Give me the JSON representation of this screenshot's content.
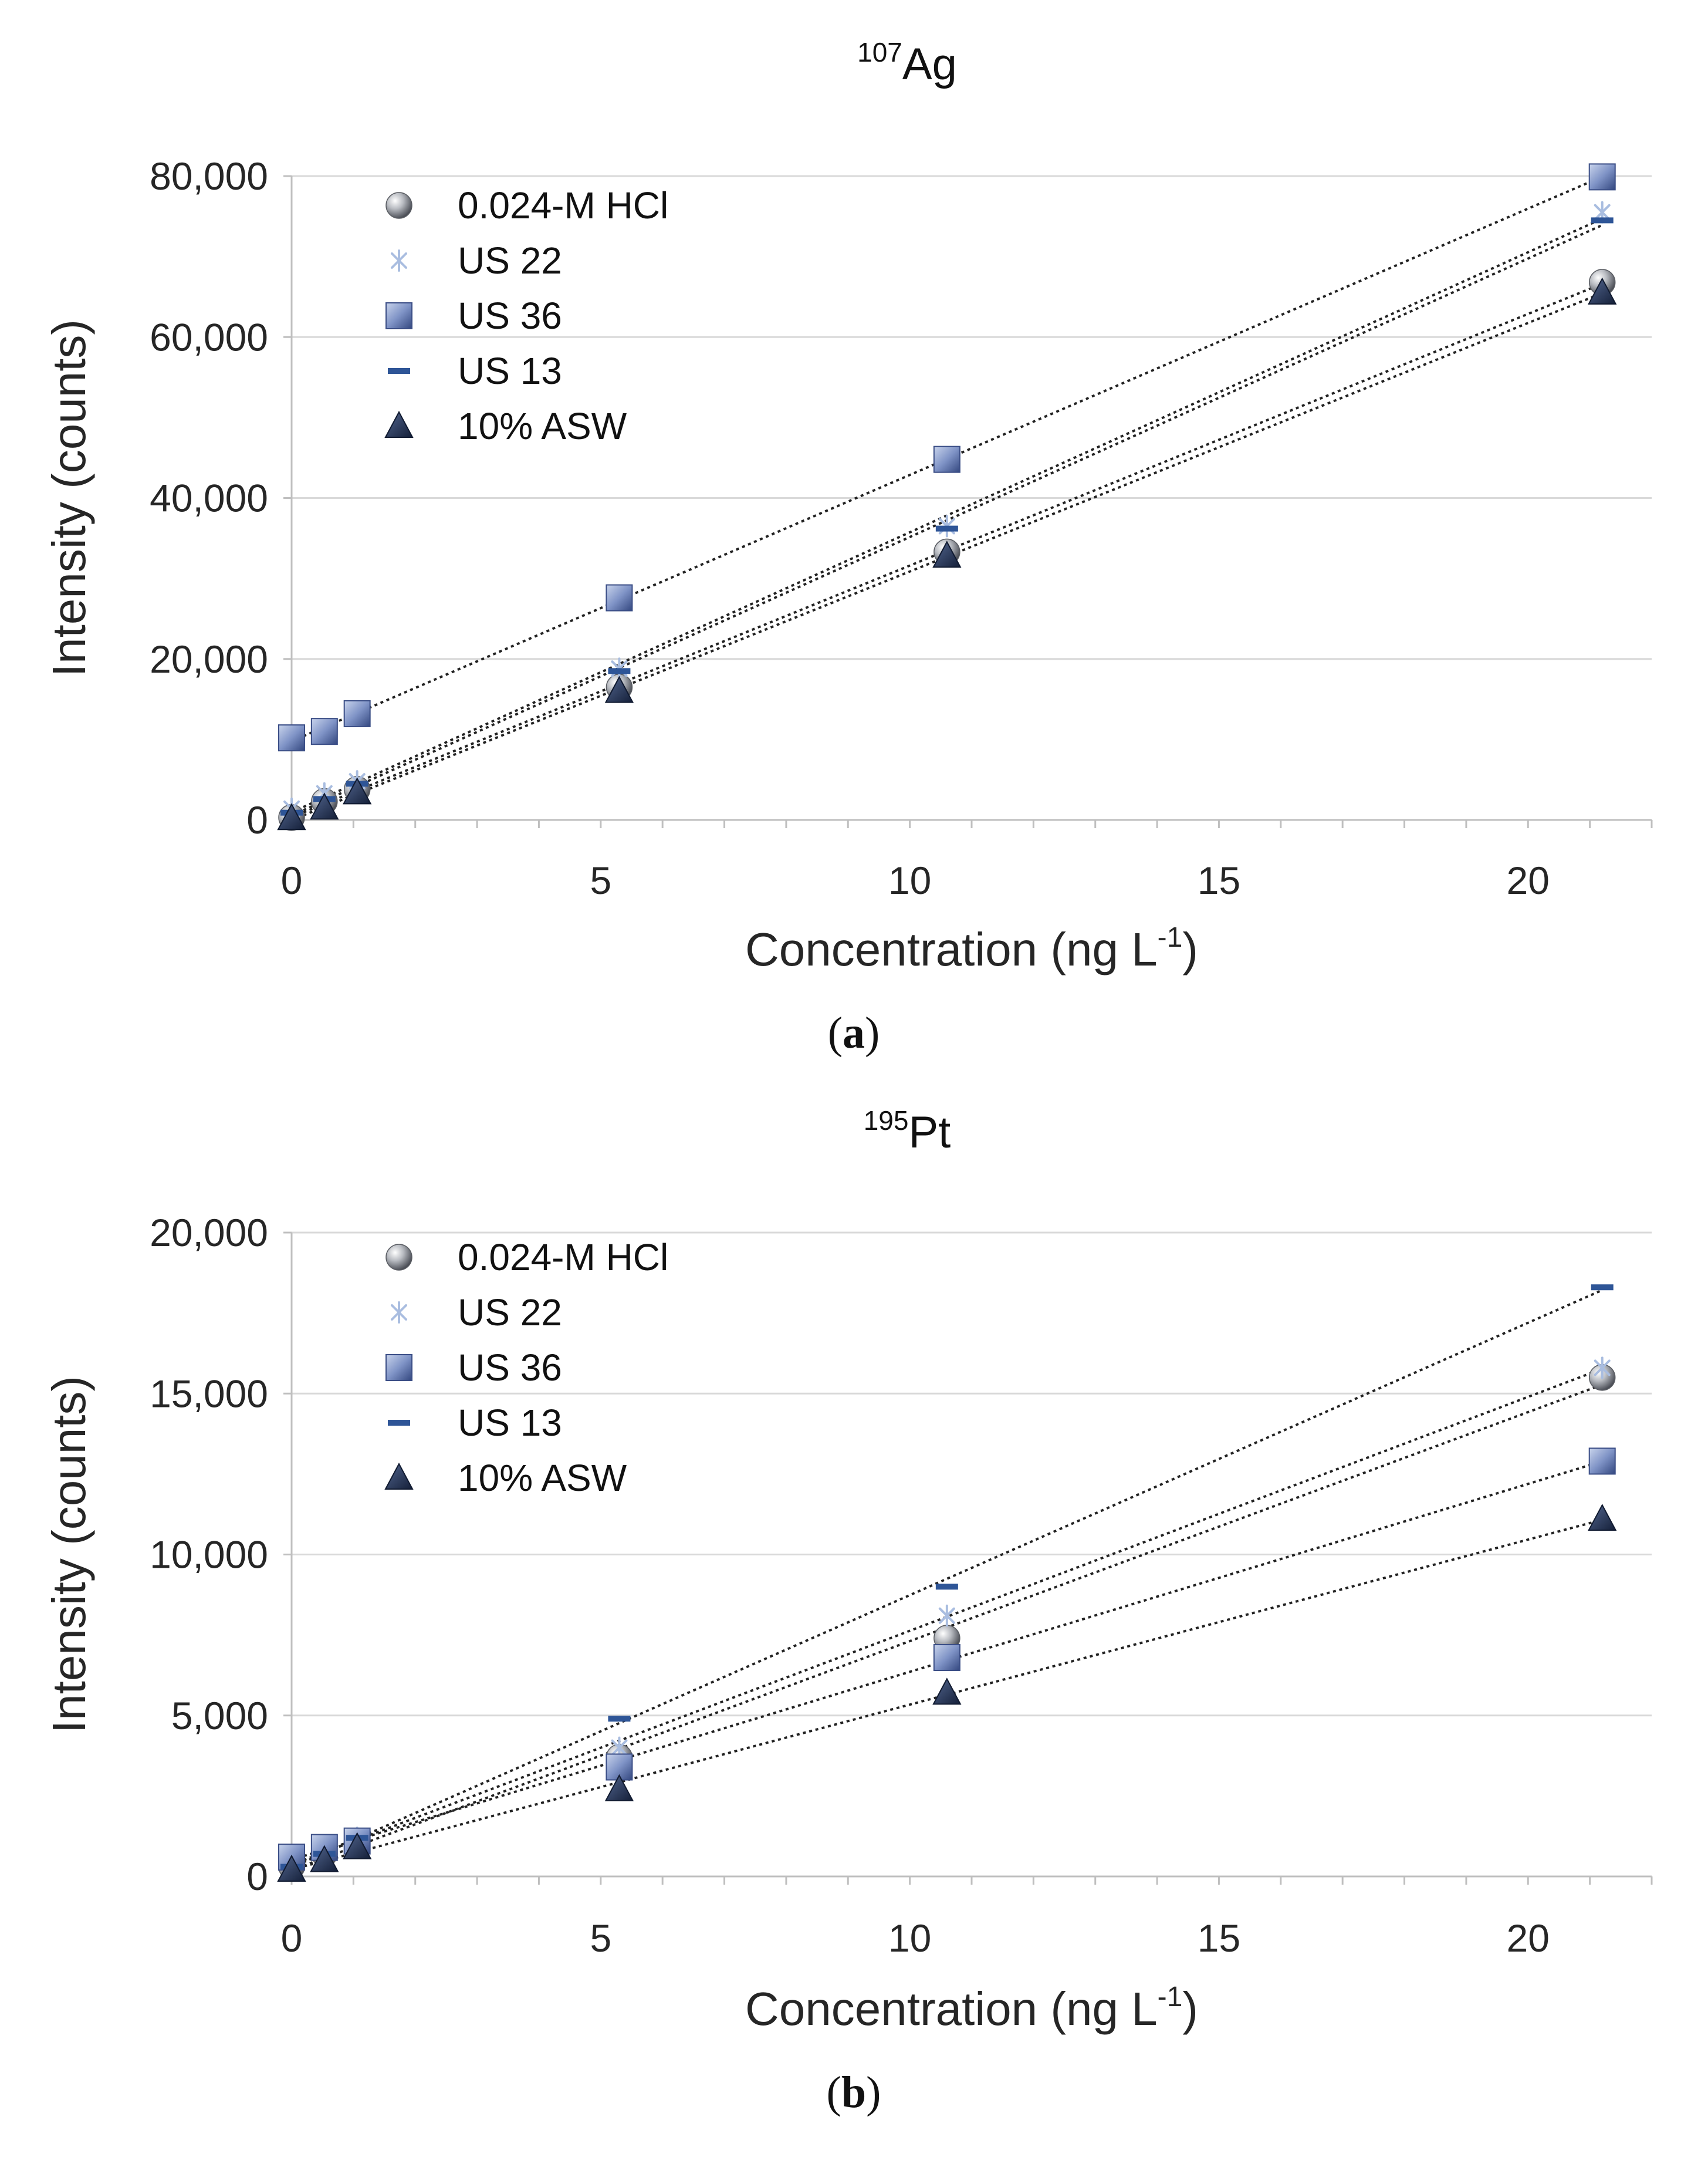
{
  "chart_data": [
    {
      "type": "scatter",
      "title_superscript": "107",
      "title_main": "Ag",
      "xlabel_main": "Concentration (ng L",
      "xlabel_superscript": "-1",
      "xlabel_end": ")",
      "ylabel": "Intensity (counts)",
      "caption_open": "(",
      "caption_letter": "a",
      "caption_close": ")",
      "xlim": [
        0,
        22
      ],
      "ylim": [
        0,
        80000
      ],
      "xticks": [
        0,
        5,
        10,
        15,
        20
      ],
      "xtick_labels": [
        "0",
        "5",
        "10",
        "15",
        "20"
      ],
      "yticks": [
        0,
        20000,
        40000,
        60000,
        80000
      ],
      "ytick_labels": [
        "0",
        "20,000",
        "40,000",
        "60,000",
        "80,000"
      ],
      "grid": true,
      "legend_position": "top-left",
      "trendlines": "linear, dotted",
      "series": [
        {
          "name": "0.024-M HCl",
          "marker": "sphere",
          "x": [
            0,
            0.53,
            1.06,
            5.3,
            10.6,
            21.2
          ],
          "y": [
            300,
            2300,
            3800,
            16500,
            33300,
            66800
          ]
        },
        {
          "name": "US 22",
          "marker": "asterisk",
          "x": [
            0,
            0.53,
            1.06,
            5.3,
            10.6,
            21.2
          ],
          "y": [
            1400,
            3300,
            4800,
            18800,
            36500,
            75500
          ]
        },
        {
          "name": "US 36",
          "marker": "square",
          "x": [
            0,
            0.53,
            1.06,
            5.3,
            10.6,
            21.2
          ],
          "y": [
            10200,
            11000,
            13200,
            27600,
            44800,
            79900
          ]
        },
        {
          "name": "US 13",
          "marker": "dash",
          "x": [
            0,
            0.53,
            1.06,
            5.3,
            10.6,
            21.2
          ],
          "y": [
            900,
            2600,
            4500,
            18500,
            36200,
            74500
          ]
        },
        {
          "name": "10% ASW",
          "marker": "triangle",
          "x": [
            0,
            0.53,
            1.06,
            5.3,
            10.6,
            21.2
          ],
          "y": [
            200,
            1500,
            3400,
            16000,
            32800,
            65500
          ]
        }
      ]
    },
    {
      "type": "scatter",
      "title_superscript": "195",
      "title_main": "Pt",
      "xlabel_main": "Concentration (ng L",
      "xlabel_superscript": "-1",
      "xlabel_end": ")",
      "ylabel": "Intensity (counts)",
      "caption_open": "(",
      "caption_letter": "b",
      "caption_close": ")",
      "xlim": [
        0,
        22
      ],
      "ylim": [
        0,
        20000
      ],
      "xticks": [
        0,
        5,
        10,
        15,
        20
      ],
      "xtick_labels": [
        "0",
        "5",
        "10",
        "15",
        "20"
      ],
      "yticks": [
        0,
        5000,
        10000,
        15000,
        20000
      ],
      "ytick_labels": [
        "0",
        "5,000",
        "10,000",
        "15,000",
        "20,000"
      ],
      "grid": true,
      "legend_position": "top-left",
      "trendlines": "linear, dotted",
      "series": [
        {
          "name": "0.024-M HCl",
          "marker": "sphere",
          "x": [
            0,
            0.53,
            1.06,
            5.3,
            10.6,
            21.2
          ],
          "y": [
            300,
            700,
            1100,
            3700,
            7400,
            15500
          ]
        },
        {
          "name": "US 22",
          "marker": "asterisk",
          "x": [
            0,
            0.53,
            1.06,
            5.3,
            10.6,
            21.2
          ],
          "y": [
            400,
            800,
            1200,
            4000,
            8100,
            15800
          ]
        },
        {
          "name": "US 36",
          "marker": "square",
          "x": [
            0,
            0.53,
            1.06,
            5.3,
            10.6,
            21.2
          ],
          "y": [
            600,
            900,
            1100,
            3400,
            6800,
            12900
          ]
        },
        {
          "name": "US 13",
          "marker": "dash",
          "x": [
            0,
            0.53,
            1.06,
            5.3,
            10.6,
            21.2
          ],
          "y": [
            300,
            700,
            1200,
            4900,
            9000,
            18300
          ]
        },
        {
          "name": "10% ASW",
          "marker": "triangle",
          "x": [
            0,
            0.53,
            1.06,
            5.3,
            10.6,
            21.2
          ],
          "y": [
            200,
            500,
            900,
            2700,
            5700,
            11100
          ]
        }
      ]
    }
  ]
}
